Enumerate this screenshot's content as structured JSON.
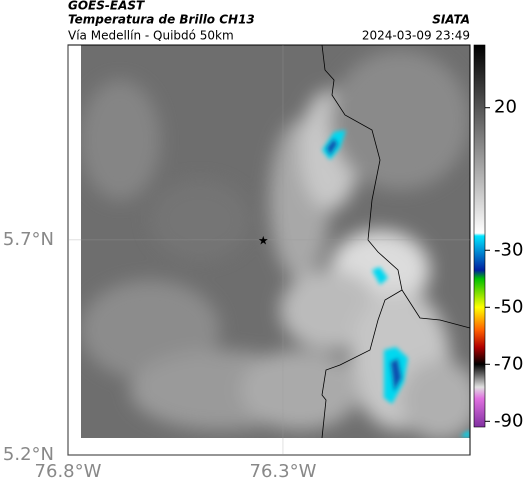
{
  "header": {
    "source": "GOES-EAST",
    "title": "Temperatura de Brillo CH13",
    "subtitle": "Vía Medellín - Quibdó 50km",
    "brand": "SIATA",
    "timestamp": "2024-03-09 23:49"
  },
  "map": {
    "xlim": [
      -76.8,
      -75.865
    ],
    "ylim": [
      5.2,
      6.153
    ],
    "xticks": [
      {
        "value": -76.8,
        "label": "76.8°W"
      },
      {
        "value": -76.3,
        "label": "76.3°W"
      }
    ],
    "yticks": [
      {
        "value": 5.2,
        "label": "5.2°N"
      },
      {
        "value": 5.7,
        "label": "5.7°N"
      }
    ],
    "point": {
      "lon": -76.346,
      "lat": 5.7
    }
  },
  "colorbar": {
    "clim": [
      -92,
      42
    ],
    "ticks": [
      20,
      -30,
      -50,
      -70,
      -90
    ],
    "colormap": [
      {
        "value": 42,
        "color": "#000000"
      },
      {
        "value": -24,
        "color": "#ffffff"
      },
      {
        "value": -25,
        "color": "#00e5ff"
      },
      {
        "value": -37,
        "color": "#0020a0"
      },
      {
        "value": -40,
        "color": "#00c000"
      },
      {
        "value": -50,
        "color": "#ffff00"
      },
      {
        "value": -58,
        "color": "#ff6000"
      },
      {
        "value": -64,
        "color": "#b00000"
      },
      {
        "value": -70,
        "color": "#000000"
      },
      {
        "value": -78,
        "color": "#e0e0e0"
      },
      {
        "value": -82,
        "color": "#e070e0"
      },
      {
        "value": -92,
        "color": "#8030a0"
      }
    ]
  }
}
